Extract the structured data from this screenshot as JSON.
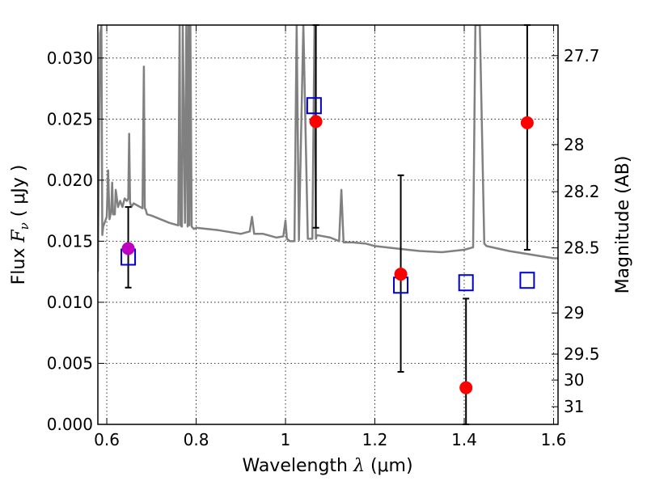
{
  "chart_data": {
    "type": "scatter",
    "xlabel": "Wavelength",
    "xlabel_math": "λ",
    "xlabel_unit": "(μm)",
    "ylabel": "Flux",
    "ylabel_math": "F",
    "ylabel_sub": "ν",
    "ylabel_unit": "( μJy )",
    "y2label": "Magnitude (AB)",
    "xlim": [
      0.58,
      1.61
    ],
    "ylim": [
      0.0,
      0.0327
    ],
    "grid": true,
    "x_ticks": [
      {
        "v": 0.6,
        "label": "0.6"
      },
      {
        "v": 0.8,
        "label": "0.8"
      },
      {
        "v": 1.0,
        "label": "1"
      },
      {
        "v": 1.2,
        "label": "1.2"
      },
      {
        "v": 1.4,
        "label": "1.4"
      },
      {
        "v": 1.6,
        "label": "1.6"
      }
    ],
    "y_ticks": [
      {
        "v": 0.0,
        "label": "0.000"
      },
      {
        "v": 0.005,
        "label": "0.005"
      },
      {
        "v": 0.01,
        "label": "0.010"
      },
      {
        "v": 0.015,
        "label": "0.015"
      },
      {
        "v": 0.02,
        "label": "0.020"
      },
      {
        "v": 0.025,
        "label": "0.025"
      },
      {
        "v": 0.03,
        "label": "0.030"
      }
    ],
    "y2_ticks": [
      {
        "v": 27.7,
        "label": "27.7"
      },
      {
        "v": 28,
        "label": "28"
      },
      {
        "v": 28.2,
        "label": "28.2"
      },
      {
        "v": 28.5,
        "label": "28.5"
      },
      {
        "v": 29,
        "label": "29"
      },
      {
        "v": 29.5,
        "label": "29.5"
      },
      {
        "v": 30,
        "label": "30"
      },
      {
        "v": 31,
        "label": "31"
      }
    ],
    "model_spectrum": {
      "color": "#808080",
      "x": [
        0.58,
        0.585,
        0.588,
        0.59,
        0.592,
        0.595,
        0.6,
        0.603,
        0.606,
        0.61,
        0.612,
        0.614,
        0.618,
        0.62,
        0.625,
        0.63,
        0.635,
        0.64,
        0.645,
        0.648,
        0.65,
        0.652,
        0.655,
        0.66,
        0.67,
        0.68,
        0.683,
        0.685,
        0.687,
        0.69,
        0.7,
        0.72,
        0.74,
        0.76,
        0.763,
        0.765,
        0.768,
        0.77,
        0.775,
        0.778,
        0.781,
        0.783,
        0.785,
        0.787,
        0.79,
        0.795,
        0.8,
        0.85,
        0.9,
        0.92,
        0.925,
        0.93,
        0.95,
        0.98,
        0.995,
        1.0,
        1.003,
        1.01,
        1.02,
        1.025,
        1.03,
        1.04,
        1.05,
        1.06,
        1.065,
        1.068,
        1.07,
        1.1,
        1.12,
        1.125,
        1.13,
        1.15,
        1.18,
        1.2,
        1.25,
        1.3,
        1.35,
        1.4,
        1.42,
        1.425,
        1.43,
        1.435,
        1.445,
        1.45,
        1.5,
        1.55,
        1.6,
        1.61
      ],
      "y": [
        0.0125,
        0.032,
        0.0327,
        0.0155,
        0.0162,
        0.0165,
        0.017,
        0.0208,
        0.0168,
        0.0175,
        0.0198,
        0.0172,
        0.0172,
        0.0192,
        0.0178,
        0.0183,
        0.0178,
        0.0185,
        0.0183,
        0.0185,
        0.0238,
        0.0182,
        0.0178,
        0.0181,
        0.0179,
        0.0177,
        0.0293,
        0.0177,
        0.0176,
        0.0172,
        0.0171,
        0.0168,
        0.0165,
        0.0163,
        0.0327,
        0.0163,
        0.0162,
        0.0327,
        0.0165,
        0.0327,
        0.0162,
        0.0327,
        0.0163,
        0.0327,
        0.0162,
        0.016,
        0.0161,
        0.0159,
        0.0156,
        0.0158,
        0.017,
        0.0156,
        0.0156,
        0.0153,
        0.0154,
        0.0167,
        0.0152,
        0.015,
        0.015,
        0.0327,
        0.0151,
        0.0327,
        0.0152,
        0.0152,
        0.0327,
        0.0152,
        0.0155,
        0.0153,
        0.015,
        0.0192,
        0.0149,
        0.0149,
        0.0148,
        0.0146,
        0.0144,
        0.0142,
        0.0141,
        0.0143,
        0.0145,
        0.0327,
        0.0327,
        0.0327,
        0.0148,
        0.0146,
        0.0142,
        0.0139,
        0.0136,
        0.0136
      ]
    },
    "observed_points": [
      {
        "x": 0.648,
        "y": 0.0144,
        "yerr_low": 0.0112,
        "yerr_high": 0.0178,
        "color": "#c000c0"
      },
      {
        "x": 1.068,
        "y": 0.0248,
        "yerr_low": 0.0161,
        "yerr_high": 0.0327,
        "color": "#ff0000"
      },
      {
        "x": 1.258,
        "y": 0.0123,
        "yerr_low": 0.0043,
        "yerr_high": 0.0204,
        "color": "#ff0000"
      },
      {
        "x": 1.404,
        "y": 0.003,
        "yerr_low": 0.0,
        "yerr_high": 0.0103,
        "color": "#ff0000"
      },
      {
        "x": 1.541,
        "y": 0.0247,
        "yerr_low": 0.0143,
        "yerr_high": 0.0327,
        "color": "#ff0000"
      }
    ],
    "model_photometry": {
      "color": "#0000cc",
      "points": [
        {
          "x": 0.648,
          "y": 0.0137
        },
        {
          "x": 1.064,
          "y": 0.0261
        },
        {
          "x": 1.258,
          "y": 0.0114
        },
        {
          "x": 1.404,
          "y": 0.0116
        },
        {
          "x": 1.541,
          "y": 0.0118
        }
      ]
    }
  }
}
